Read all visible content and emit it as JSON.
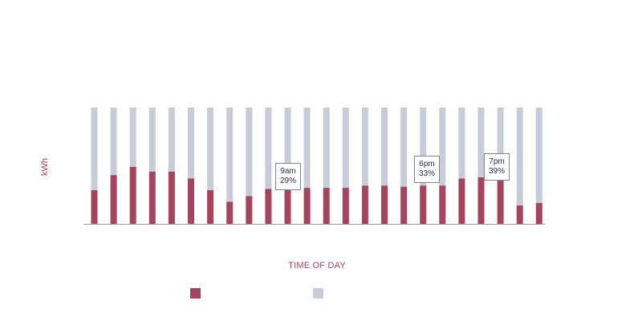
{
  "chart_data": {
    "type": "bar",
    "stacked": true,
    "ylabel": "kWh",
    "xlabel": "TIME OF DAY",
    "total": 100,
    "series": [
      {
        "color": "#a6445f",
        "values": [
          29,
          42,
          49,
          45,
          45,
          39,
          29,
          19,
          24,
          30,
          29,
          31,
          31,
          31,
          33,
          33,
          32,
          33,
          33,
          39,
          40,
          39,
          16,
          18
        ]
      },
      {
        "color": "#c9cbd6",
        "values": [
          71,
          58,
          51,
          55,
          55,
          61,
          71,
          81,
          76,
          70,
          71,
          69,
          69,
          69,
          67,
          67,
          68,
          67,
          67,
          61,
          60,
          61,
          84,
          82
        ]
      }
    ],
    "annotations": [
      {
        "bar_index": 10,
        "time": "9am",
        "value": "29%"
      },
      {
        "bar_index": 17,
        "time": "6pm",
        "value": "33%"
      },
      {
        "bar_index": 21,
        "time": "7pm",
        "value": "39%"
      }
    ],
    "legend": [
      {
        "color": "#a6445f"
      },
      {
        "color": "#c9cbd6"
      }
    ]
  }
}
